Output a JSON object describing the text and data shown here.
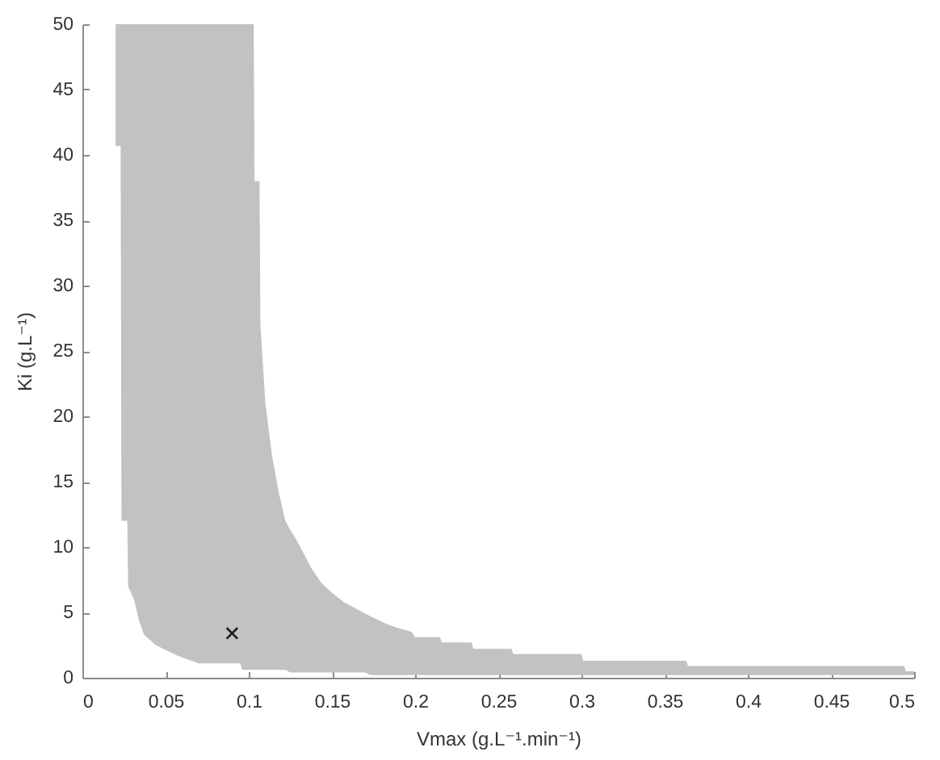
{
  "chart_data": {
    "type": "area",
    "xlabel": "Vmax (g.L⁻¹.min⁻¹)",
    "ylabel": "Ki (g.L⁻¹)",
    "x": [
      0.02,
      0.023,
      0.0235,
      0.027,
      0.0275,
      0.031,
      0.034,
      0.037,
      0.044,
      0.057,
      0.07,
      0.095,
      0.096,
      0.103,
      0.1035,
      0.1065,
      0.107,
      0.11,
      0.114,
      0.118,
      0.122,
      0.125,
      0.128,
      0.133,
      0.138,
      0.144,
      0.151,
      0.157,
      0.17,
      0.173,
      0.183,
      0.19,
      0.198,
      0.2,
      0.215,
      0.216,
      0.234,
      0.235,
      0.258,
      0.259,
      0.3,
      0.301,
      0.363,
      0.364,
      0.494,
      0.495,
      0.5
    ],
    "series": [
      {
        "color": "#c2c2c2",
        "values": [
          null,
          null,
          null,
          null,
          null,
          null,
          null,
          null,
          null,
          null,
          null,
          null,
          null,
          null,
          null,
          null,
          null,
          null,
          null,
          null,
          null,
          null,
          null,
          null,
          null,
          null,
          null,
          null,
          null,
          null,
          null,
          null,
          null,
          null,
          null,
          null,
          null,
          null,
          null,
          null,
          null,
          null,
          null,
          null,
          null,
          null,
          null
        ],
        "upper": [
          50,
          50,
          50,
          50,
          50,
          50,
          50,
          50,
          50,
          50,
          50,
          50,
          50,
          50,
          38,
          38,
          27,
          21,
          17,
          14.2,
          12,
          11.3,
          10.7,
          9.5,
          8.3,
          7.2,
          6.4,
          5.8,
          4.9,
          4.7,
          4.1,
          3.8,
          3.5,
          3.1,
          3.1,
          2.7,
          2.7,
          2.2,
          2.2,
          1.8,
          1.8,
          1.3,
          1.3,
          0.9,
          0.9,
          0.5,
          0.5
        ],
        "lower": [
          40.7,
          40.7,
          12,
          12,
          7,
          6,
          4.4,
          3.3,
          2.5,
          1.7,
          1.1,
          1.1,
          0.6,
          0.6,
          0.6,
          0.6,
          0.6,
          0.6,
          0.6,
          0.6,
          0.6,
          0.4,
          0.4,
          0.4,
          0.4,
          0.4,
          0.4,
          0.4,
          0.4,
          0.2,
          0.2,
          0.2,
          0.2,
          0.2,
          0.2,
          0.2,
          0.2,
          0.2,
          0.2,
          0.2,
          0.2,
          0.2,
          0.2,
          0.2,
          0.2,
          0.2,
          0.2
        ]
      },
      {
        "type": "scatter",
        "x": [
          0.09
        ],
        "values": [
          3.4
        ],
        "color": "#222222",
        "marker": "cross"
      }
    ],
    "xlim": [
      0,
      0.5
    ],
    "xticks": [
      0,
      0.05,
      0.1,
      0.15,
      0.2,
      0.25,
      0.3,
      0.35,
      0.4,
      0.45,
      0.5
    ],
    "ylim": [
      0,
      50
    ],
    "yticks": [
      0,
      5,
      10,
      15,
      20,
      25,
      30,
      35,
      40,
      45,
      50
    ]
  }
}
